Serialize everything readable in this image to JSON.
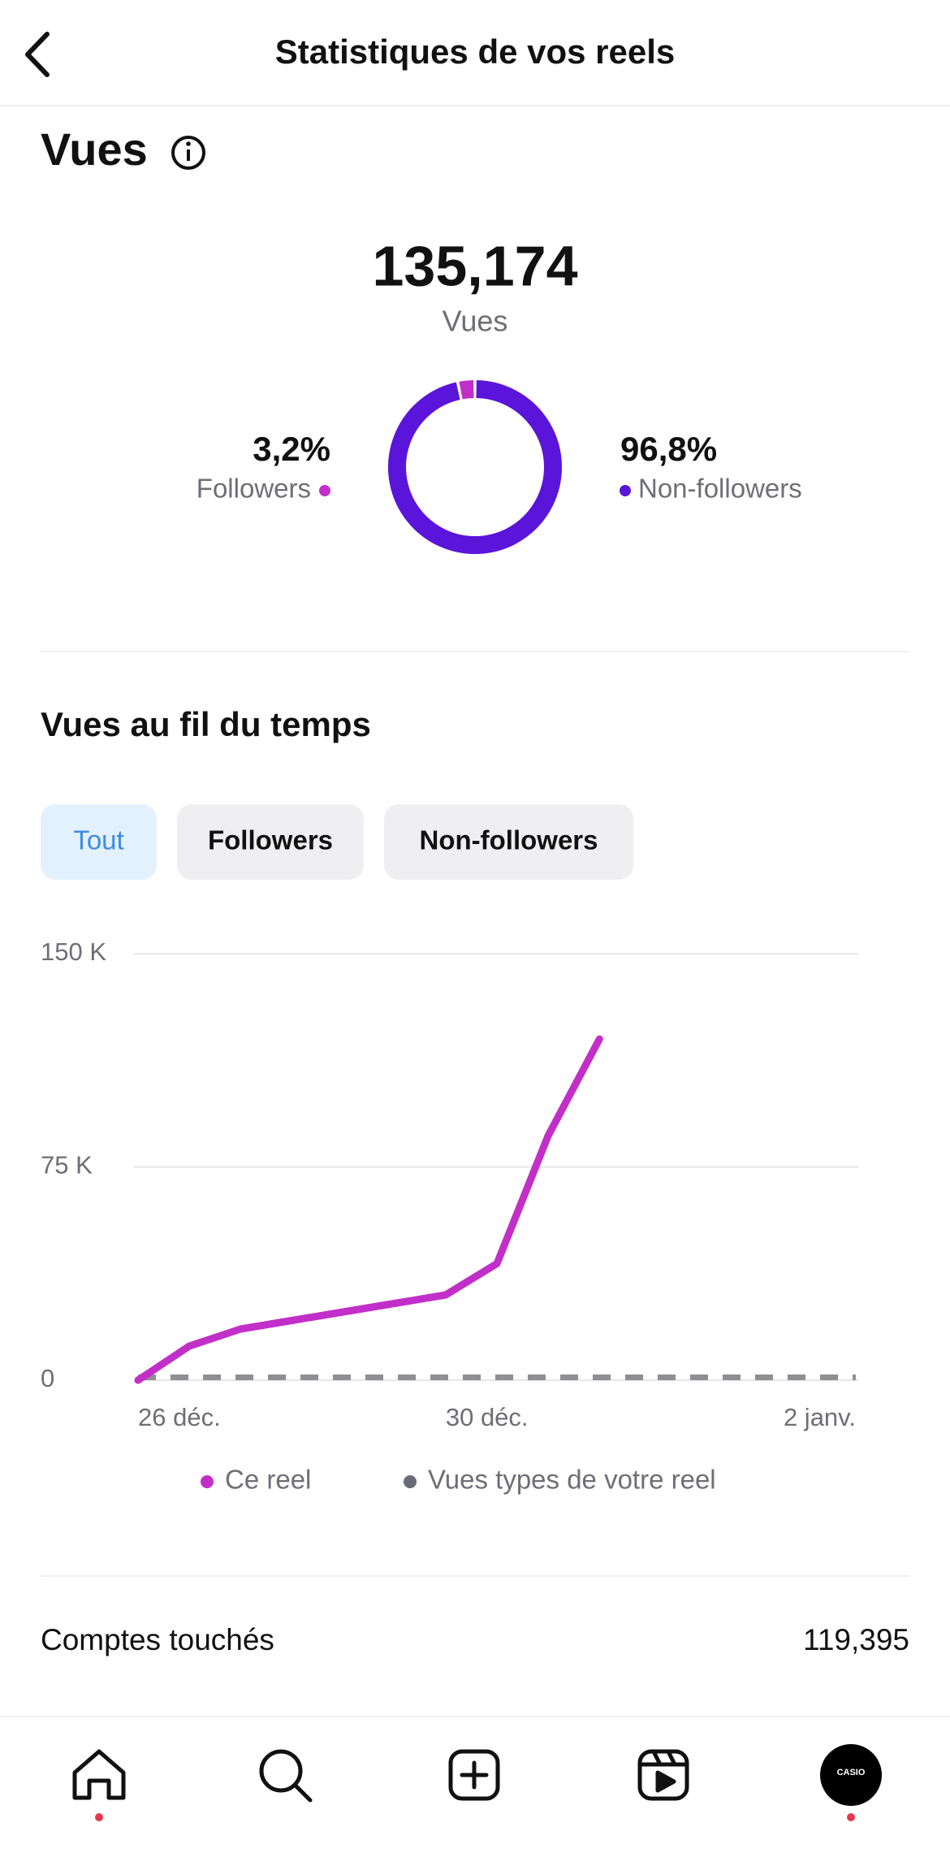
{
  "header": {
    "title": "Statistiques de vos reels"
  },
  "views": {
    "title": "Vues",
    "total": "135,174",
    "total_label": "Vues"
  },
  "tabs": [
    {
      "label": "Tout",
      "active": true
    },
    {
      "label": "Followers",
      "active": false
    },
    {
      "label": "Non-followers",
      "active": false
    }
  ],
  "chart_data": [
    {
      "type": "pie",
      "categories": [
        "Followers",
        "Non-followers"
      ],
      "values": [
        3.2,
        96.8
      ],
      "value_labels": [
        "3,2%",
        "96,8%"
      ],
      "colors": [
        "#c22fc8",
        "#5b14d9"
      ]
    },
    {
      "type": "line",
      "title": "Vues au fil du temps",
      "categories": [
        "26 déc.",
        null,
        null,
        null,
        null,
        null,
        "30 déc.",
        null,
        null,
        null,
        null,
        null,
        null,
        null,
        "2 janv."
      ],
      "series": [
        {
          "name": "Ce reel",
          "color": "#c22fc8",
          "values": [
            0,
            12000,
            18000,
            21000,
            24000,
            27000,
            30000,
            41000,
            86000,
            120000,
            null,
            null,
            null,
            null,
            null
          ]
        },
        {
          "name": "Vues types de votre reel",
          "color": "#8e8e93",
          "dashed": true,
          "values": [
            1000,
            1000,
            1000,
            1000,
            1000,
            1000,
            1000,
            1000,
            1000,
            1000,
            1000,
            1000,
            1000,
            1000,
            1000
          ]
        }
      ],
      "ylim": [
        0,
        150000
      ],
      "yticks": [
        0,
        {
          "value": 75000,
          "label": "75 K"
        },
        {
          "value": 150000,
          "label": "150 K"
        }
      ],
      "grid": true
    }
  ],
  "metrics": [
    {
      "label": "Comptes touchés",
      "value": "119,395"
    }
  ],
  "nav": {
    "profile_label": "CASIO"
  }
}
